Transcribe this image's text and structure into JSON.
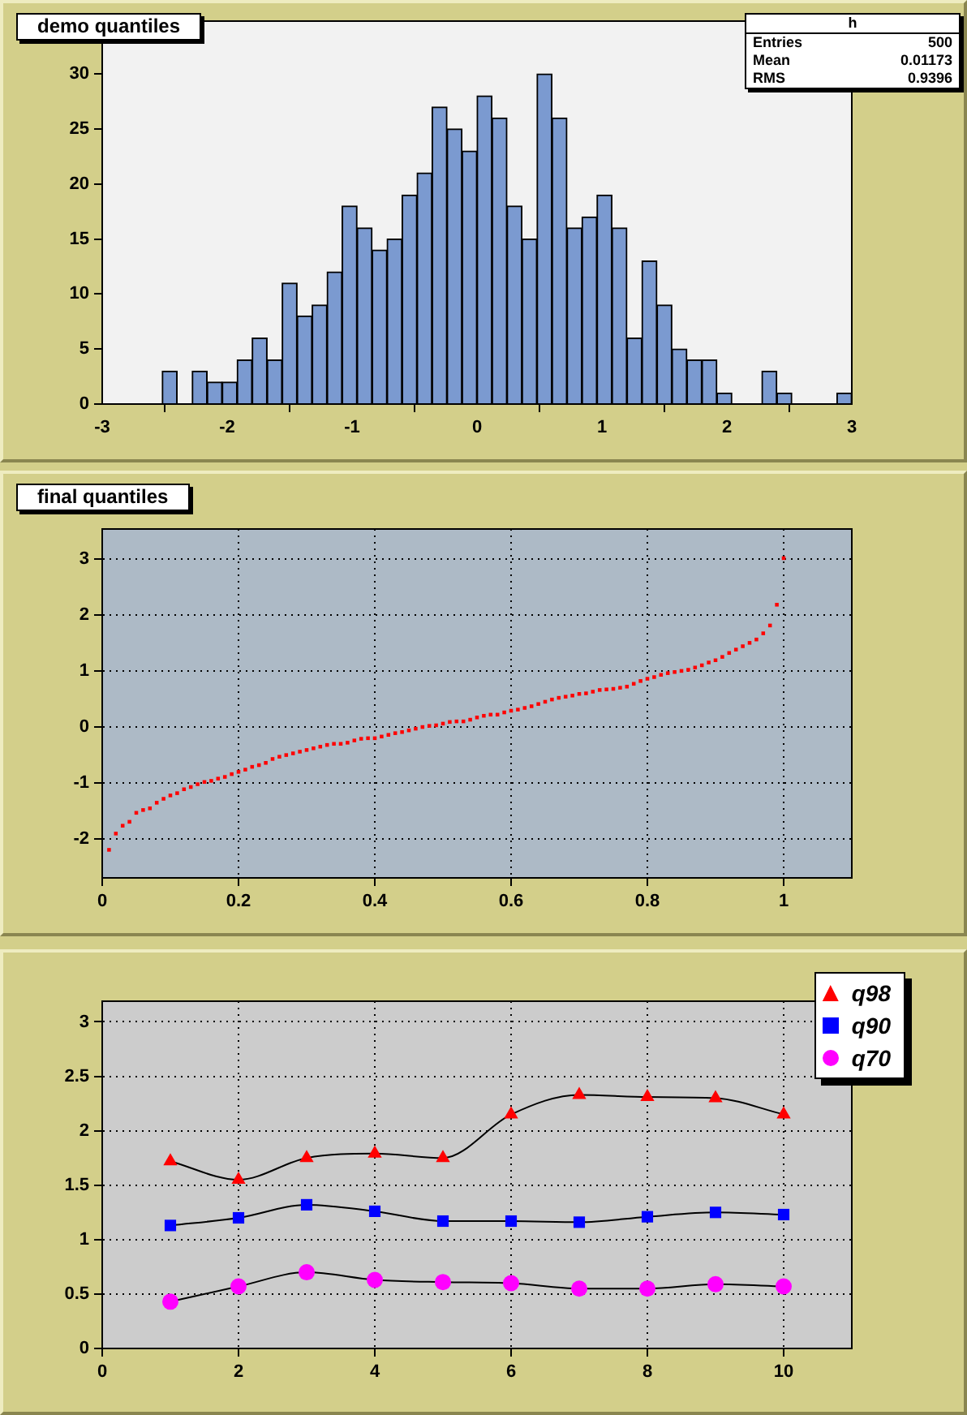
{
  "chart_data": [
    {
      "type": "histogram",
      "title": "demo quantiles",
      "bins": [
        -3,
        -2.88,
        -2.76,
        -2.64,
        -2.52,
        -2.4,
        -2.28,
        -2.16,
        -2.04,
        -1.92,
        -1.8,
        -1.68,
        -1.56,
        -1.44,
        -1.32,
        -1.2,
        -1.08,
        -0.96,
        -0.84,
        -0.72,
        -0.6,
        -0.48,
        -0.36,
        -0.24,
        -0.12,
        0,
        0.12,
        0.24,
        0.36,
        0.48,
        0.6,
        0.72,
        0.84,
        0.96,
        1.08,
        1.2,
        1.32,
        1.44,
        1.56,
        1.68,
        1.8,
        1.92,
        2.04,
        2.16,
        2.28,
        2.4,
        2.52,
        2.64,
        2.76,
        2.88,
        3
      ],
      "values": [
        0,
        0,
        0,
        0,
        3,
        0,
        3,
        2,
        2,
        4,
        6,
        4,
        11,
        8,
        9,
        12,
        18,
        16,
        14,
        15,
        19,
        21,
        27,
        25,
        23,
        28,
        26,
        18,
        15,
        30,
        26,
        16,
        17,
        19,
        16,
        6,
        13,
        9,
        5,
        4,
        4,
        1,
        0,
        0,
        3,
        1,
        0,
        0,
        0,
        1
      ],
      "color": "#7b9ad0",
      "xlim": [
        -3,
        3
      ],
      "xticks": [
        -3,
        -2,
        -1,
        0,
        1,
        2,
        3
      ],
      "ylim": [
        0,
        34.8
      ],
      "yticks": [
        0,
        5,
        10,
        15,
        20,
        25,
        30
      ],
      "grid": false,
      "annotations": [
        "h",
        "Entries",
        "500",
        "Mean",
        "0.01173",
        "RMS",
        "0.9396"
      ]
    },
    {
      "type": "scatter",
      "title": "final quantiles",
      "marker": "square",
      "color": "#ff0000",
      "x": [
        0.01,
        0.02,
        0.03,
        0.04,
        0.05,
        0.06,
        0.07,
        0.08,
        0.09,
        0.1,
        0.11,
        0.12,
        0.13,
        0.14,
        0.15,
        0.16,
        0.17,
        0.18,
        0.19,
        0.2,
        0.21,
        0.22,
        0.23,
        0.24,
        0.25,
        0.26,
        0.27,
        0.28,
        0.29,
        0.3,
        0.31,
        0.32,
        0.33,
        0.34,
        0.35,
        0.36,
        0.37,
        0.38,
        0.39,
        0.4,
        0.41,
        0.42,
        0.43,
        0.44,
        0.45,
        0.46,
        0.47,
        0.48,
        0.49,
        0.5,
        0.51,
        0.52,
        0.53,
        0.54,
        0.55,
        0.56,
        0.57,
        0.58,
        0.59,
        0.6,
        0.61,
        0.62,
        0.63,
        0.64,
        0.65,
        0.66,
        0.67,
        0.68,
        0.69,
        0.7,
        0.71,
        0.72,
        0.73,
        0.74,
        0.75,
        0.76,
        0.77,
        0.78,
        0.79,
        0.8,
        0.81,
        0.82,
        0.83,
        0.84,
        0.85,
        0.86,
        0.87,
        0.88,
        0.89,
        0.9,
        0.91,
        0.92,
        0.93,
        0.94,
        0.95,
        0.96,
        0.97,
        0.98,
        0.99,
        1
      ],
      "values": [
        -2.19,
        -1.9,
        -1.76,
        -1.69,
        -1.53,
        -1.48,
        -1.45,
        -1.35,
        -1.28,
        -1.22,
        -1.18,
        -1.11,
        -1.07,
        -1.02,
        -0.98,
        -0.96,
        -0.92,
        -0.89,
        -0.84,
        -0.8,
        -0.76,
        -0.71,
        -0.68,
        -0.64,
        -0.57,
        -0.53,
        -0.5,
        -0.47,
        -0.44,
        -0.41,
        -0.38,
        -0.35,
        -0.32,
        -0.3,
        -0.3,
        -0.28,
        -0.24,
        -0.21,
        -0.2,
        -0.2,
        -0.17,
        -0.14,
        -0.11,
        -0.09,
        -0.06,
        -0.03,
        0,
        0.02,
        0.03,
        0.06,
        0.09,
        0.1,
        0.1,
        0.13,
        0.17,
        0.2,
        0.22,
        0.22,
        0.26,
        0.29,
        0.31,
        0.34,
        0.37,
        0.41,
        0.45,
        0.49,
        0.52,
        0.54,
        0.56,
        0.59,
        0.6,
        0.63,
        0.66,
        0.67,
        0.68,
        0.7,
        0.72,
        0.77,
        0.82,
        0.86,
        0.89,
        0.93,
        0.96,
        0.98,
        1,
        1.02,
        1.06,
        1.1,
        1.15,
        1.19,
        1.25,
        1.32,
        1.38,
        1.44,
        1.5,
        1.56,
        1.67,
        1.81,
        2.18,
        3.01
      ],
      "xlim": [
        0,
        1.1
      ],
      "xticks": [
        0,
        0.2,
        0.4,
        0.6,
        0.8,
        1
      ],
      "ylim": [
        -2.69,
        3.53
      ],
      "yticks": [
        -2,
        -1,
        0,
        1,
        2,
        3
      ],
      "grid": true
    },
    {
      "type": "line",
      "x": [
        1,
        2,
        3,
        4,
        5,
        6,
        7,
        8,
        9,
        10
      ],
      "series": [
        {
          "name": "q98",
          "color": "#ff0000",
          "marker": "triangle",
          "values": [
            1.72,
            1.55,
            1.75,
            1.79,
            1.75,
            2.15,
            2.33,
            2.31,
            2.3,
            2.15
          ]
        },
        {
          "name": "q90",
          "color": "#0000ff",
          "marker": "square",
          "values": [
            1.13,
            1.2,
            1.32,
            1.26,
            1.17,
            1.17,
            1.16,
            1.21,
            1.25,
            1.23
          ]
        },
        {
          "name": "q70",
          "color": "#ff00ff",
          "marker": "circle",
          "values": [
            0.43,
            0.57,
            0.7,
            0.63,
            0.61,
            0.6,
            0.55,
            0.55,
            0.59,
            0.57
          ]
        }
      ],
      "xlim": [
        0,
        11
      ],
      "xticks": [
        0,
        2,
        4,
        6,
        8,
        10
      ],
      "ylim": [
        0,
        3.19
      ],
      "yticks": [
        0,
        0.5,
        1,
        1.5,
        2,
        2.5,
        3
      ],
      "grid": true,
      "legend": "top right"
    }
  ]
}
